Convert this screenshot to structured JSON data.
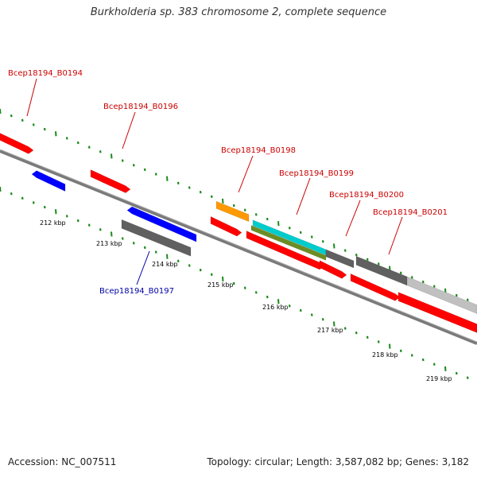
{
  "title": "Burkholderia sp. 383 chromosome 2, complete sequence",
  "footer": {
    "accession": "Accession: NC_007511",
    "summary": "Topology: circular; Length: 3,587,082 bp; Genes: 3,182"
  },
  "colors": {
    "forward_gene": "#ff0000",
    "reverse_gene": "#0000ff",
    "tick": "#1a8a1a",
    "backbone": "#808080",
    "label_forward": "#cc0000",
    "label_reverse": "#0000aa",
    "orange": "#ff9900",
    "cyan": "#00cccc",
    "olive": "#6b8e23",
    "gray": "#606060",
    "lightgray": "#c0c0c0"
  },
  "scale_labels": [
    "212 kbp",
    "213 kbp",
    "214 kbp",
    "215 kbp",
    "216 kbp",
    "217 kbp",
    "218 kbp",
    "219 kbp"
  ],
  "gene_labels": [
    {
      "text": "Bcep18194_B0194",
      "strand": "forward"
    },
    {
      "text": "Bcep18194_B0196",
      "strand": "forward"
    },
    {
      "text": "Bcep18194_B0198",
      "strand": "forward"
    },
    {
      "text": "Bcep18194_B0199",
      "strand": "forward"
    },
    {
      "text": "Bcep18194_B0200",
      "strand": "forward"
    },
    {
      "text": "Bcep18194_B0201",
      "strand": "forward"
    },
    {
      "text": "Bcep18194_B0197",
      "strand": "reverse"
    }
  ]
}
